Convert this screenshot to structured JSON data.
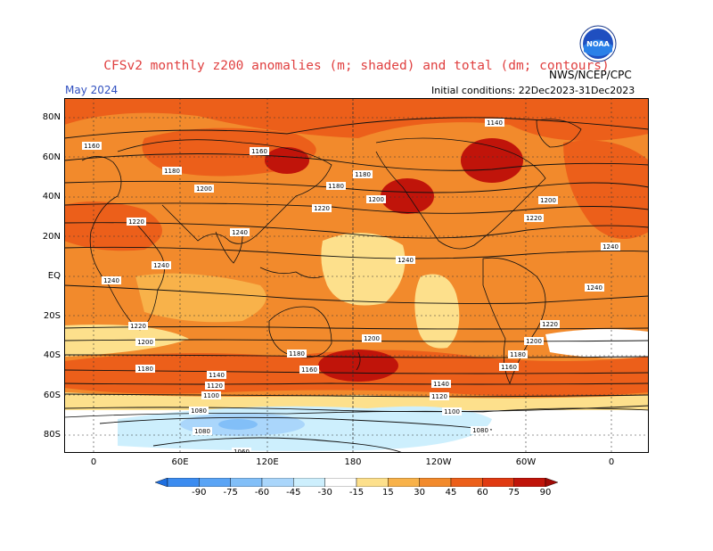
{
  "title": "CFSv2 monthly z200 anomalies (m; shaded) and total (dm; contours)",
  "agency": "NWS/NCEP/CPC",
  "logo_text": "NOAA",
  "month": "May 2024",
  "initial_conditions": "Initial conditions: 22Dec2023-31Dec2023",
  "lat_labels": [
    "80N",
    "60N",
    "40N",
    "20N",
    "EQ",
    "20S",
    "40S",
    "60S",
    "80S"
  ],
  "lon_labels": [
    "0",
    "60E",
    "120E",
    "180",
    "120W",
    "60W",
    "0"
  ],
  "colorbar": {
    "labels": [
      "-90",
      "-75",
      "-60",
      "-45",
      "-30",
      "-15",
      "15",
      "30",
      "45",
      "60",
      "75",
      "90"
    ],
    "colors": [
      "#1e6fe0",
      "#3c8cf0",
      "#5aa4f5",
      "#82bff8",
      "#aad6fb",
      "#cdeffd",
      "#ffffff",
      "#fde08c",
      "#f8b24a",
      "#f28a2c",
      "#ec5f1a",
      "#e03a12",
      "#c0140a",
      "#a00a06"
    ]
  },
  "contour_labels": [
    "1140",
    "1160",
    "1160",
    "1180",
    "1180",
    "1180",
    "1200",
    "1200",
    "1200",
    "1220",
    "1220",
    "1220",
    "1240",
    "1240",
    "1240",
    "1240",
    "1240",
    "1240",
    "1220",
    "1220",
    "1200",
    "1200",
    "1200",
    "1180",
    "1180",
    "1180",
    "1160",
    "1160",
    "1140",
    "1140",
    "1120",
    "1120",
    "1100",
    "1100",
    "1080",
    "1080",
    "1080",
    "1060"
  ],
  "map_colors": {
    "pos_light": "#fde08c",
    "pos_mid": "#f8b24a",
    "pos_strong": "#f28a2c",
    "pos_stronger": "#ec5f1a",
    "pos_max": "#c0140a",
    "neg_light": "#cdeffd",
    "neg_mid": "#aad6fb",
    "neg_strong": "#82bff8"
  }
}
